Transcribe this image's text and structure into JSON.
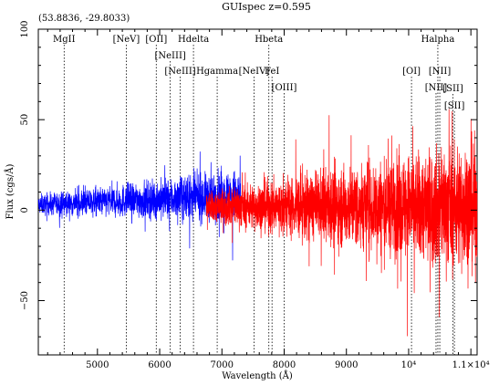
{
  "window": {
    "title": "GUIspec z=0.595",
    "cursor_readout": "(53.8836, -29.8033)"
  },
  "chart_data": {
    "type": "line",
    "title": "GUIspec z=0.595",
    "xlabel": "Wavelength (Å)",
    "ylabel": "Flux (cgs/Å)",
    "xlim": [
      4050,
      11100
    ],
    "ylim": [
      -80,
      100
    ],
    "xticks": [
      {
        "value": 5000,
        "label": "5000"
      },
      {
        "value": 6000,
        "label": "6000"
      },
      {
        "value": 7000,
        "label": "7000"
      },
      {
        "value": 8000,
        "label": "8000"
      },
      {
        "value": 9000,
        "label": "9000"
      },
      {
        "value": 10000,
        "label": "10⁴"
      },
      {
        "value": 11000,
        "label": "1.1×10⁴"
      }
    ],
    "yticks": [
      {
        "value": -50,
        "label": "−50"
      },
      {
        "value": 0,
        "label": "0"
      },
      {
        "value": 50,
        "label": "50"
      },
      {
        "value": 100,
        "label": "100"
      }
    ],
    "series": [
      {
        "color": "#0000ff",
        "x_start": 4050,
        "x_end": 7300,
        "style": "noisy spectrum"
      },
      {
        "color": "#ff0000",
        "x_start": 6750,
        "x_end": 11100,
        "style": "noisy spectrum"
      }
    ],
    "lines": [
      {
        "label": "MgII",
        "x": 4465,
        "row": 1
      },
      {
        "label": "[NeV]",
        "x": 5464,
        "row": 1
      },
      {
        "label": "[OII]",
        "x": 5945,
        "row": 1
      },
      {
        "label": "[NeIII]",
        "x": 6170,
        "row": 2
      },
      {
        "label": "[NeIII]",
        "x": 6330,
        "row": 3
      },
      {
        "label": "Hdelta",
        "x": 6543,
        "row": 1
      },
      {
        "label": "Hgamma",
        "x": 6924,
        "row": 3
      },
      {
        "label": "Hbeta",
        "x": 7754,
        "row": 1
      },
      {
        "label": "[NeIV]",
        "x": 7515,
        "row": 3
      },
      {
        "label": "FeI",
        "x": 7805,
        "row": 3
      },
      {
        "label": "[OIII]",
        "x": 8000,
        "row": 4
      },
      {
        "label": "[OI]",
        "x": 10046,
        "row": 3
      },
      {
        "label": "Halpha",
        "x": 10469,
        "row": 1
      },
      {
        "label": "[NII]",
        "x": 10500,
        "row": 3
      },
      {
        "label": "[NII]",
        "x": 10440,
        "row": 4
      },
      {
        "label": "[SII]",
        "x": 10712,
        "row": 5
      },
      {
        "label": "[SII]",
        "x": 10735,
        "row": 6
      }
    ]
  }
}
